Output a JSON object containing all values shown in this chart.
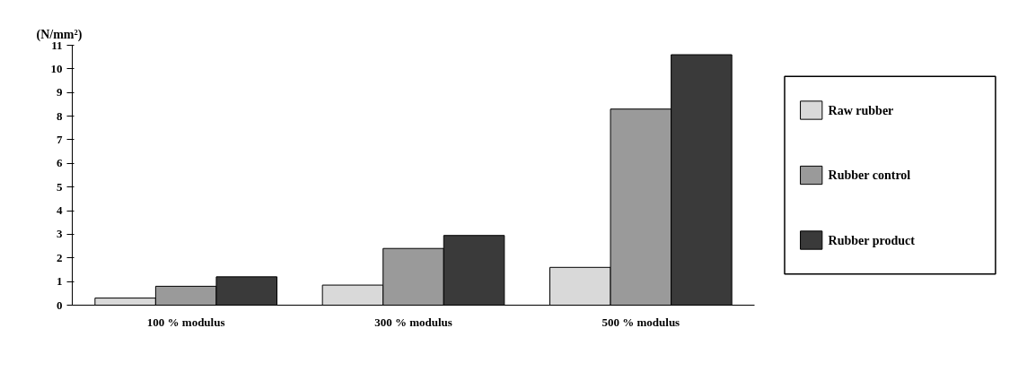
{
  "chart_data": {
    "type": "bar",
    "ylabel": "(N/mm²)",
    "categories": [
      "100 % modulus",
      "300 % modulus",
      "500 % modulus"
    ],
    "series": [
      {
        "name": "Raw rubber",
        "color": "#d9d9d9",
        "values": [
          0.3,
          0.85,
          1.6
        ]
      },
      {
        "name": "Rubber control",
        "color": "#9a9a9a",
        "values": [
          0.8,
          2.4,
          8.3
        ]
      },
      {
        "name": "Rubber product",
        "color": "#3a3a3a",
        "values": [
          1.2,
          2.95,
          10.6
        ]
      }
    ],
    "ylim": [
      0,
      11
    ],
    "yticks": [
      0,
      1,
      2,
      3,
      4,
      5,
      6,
      7,
      8,
      9,
      10,
      11
    ],
    "grid": false,
    "legend": "right"
  }
}
